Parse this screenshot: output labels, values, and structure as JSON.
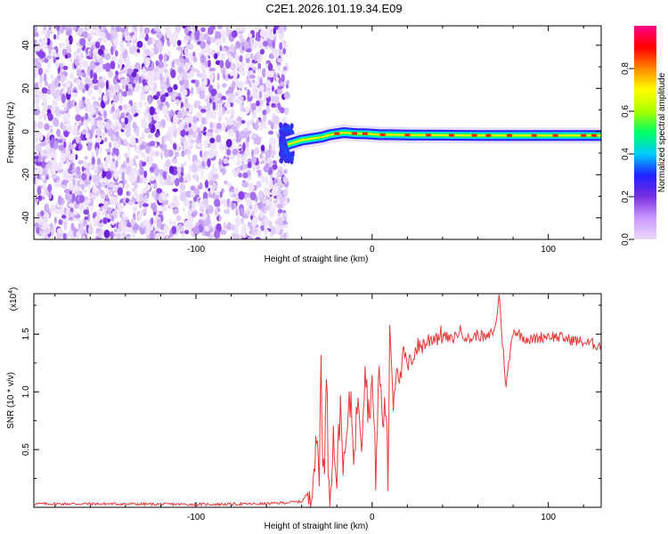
{
  "title": "C2E1.2026.101.19.34.E09",
  "chart_data": [
    {
      "type": "heatmap",
      "xlabel": "Height of straight line (km)",
      "ylabel": "Frequency (Hz)",
      "xlim": [
        -192,
        130
      ],
      "ylim": [
        -50,
        49
      ],
      "xticks": [
        -100,
        0,
        100
      ],
      "yticks": [
        -40,
        -20,
        0,
        20,
        40
      ],
      "colorbar": {
        "label": "Normalized spectral amplitude",
        "range": [
          0,
          1
        ],
        "ticks": [
          0.0,
          0.2,
          0.4,
          0.6,
          0.8
        ],
        "stops": [
          "#e8d8f8",
          "#cc99ff",
          "#7a2fe0",
          "#2020ff",
          "#00ccff",
          "#00ff66",
          "#aaff00",
          "#ffff00",
          "#ff8800",
          "#ff0000",
          "#ff0088"
        ]
      },
      "noise_region_x": [
        -192,
        -48
      ],
      "ridge": {
        "x": [
          -48,
          -44,
          -40,
          -36,
          -32,
          -28,
          -24,
          -20,
          -16,
          -12,
          -8,
          -4,
          0,
          4,
          10,
          20,
          40,
          60,
          80,
          100,
          130
        ],
        "freq": [
          -6,
          -5,
          -4,
          -3.5,
          -3,
          -2.5,
          -1.5,
          -1,
          -0.5,
          -0.8,
          -1,
          -1,
          -1.2,
          -1.5,
          -1.5,
          -1.6,
          -1.7,
          -1.8,
          -1.8,
          -1.8,
          -1.8
        ]
      }
    },
    {
      "type": "line",
      "xlabel": "Height of straight line (km)",
      "ylabel": "SNR (10 * v/v)",
      "scale_label": "(x10",
      "scale_exp": "4",
      "xlim": [
        -192,
        130
      ],
      "ylim": [
        0,
        18500
      ],
      "xticks": [
        -100,
        0,
        100
      ],
      "yticks": [
        5000,
        10000,
        15000
      ],
      "ytick_labels": [
        "0.5",
        "1.0",
        "1.5"
      ],
      "series": [
        {
          "color": "#e83a3a",
          "x": [
            -192,
            -150,
            -100,
            -60,
            -40,
            -35,
            -33,
            -31,
            -30,
            -29,
            -28,
            -27,
            -26,
            -25,
            -24,
            -22,
            -20,
            -18,
            -16,
            -14,
            -12,
            -10,
            -8,
            -6,
            -4,
            -2,
            0,
            2,
            4,
            6,
            8,
            9,
            10,
            12,
            14,
            16,
            18,
            20,
            25,
            30,
            35,
            40,
            45,
            50,
            55,
            60,
            65,
            70,
            72,
            74,
            76,
            80,
            85,
            90,
            100,
            110,
            120,
            130
          ],
          "y": [
            300,
            300,
            250,
            300,
            500,
            1500,
            3500,
            5500,
            3000,
            13000,
            5000,
            2000,
            12800,
            4000,
            1500,
            6000,
            2500,
            9000,
            3000,
            7000,
            9500,
            4000,
            10500,
            6000,
            12500,
            8000,
            11000,
            3000,
            12000,
            7500,
            9000,
            1300,
            16000,
            9000,
            12500,
            11000,
            13500,
            12000,
            13800,
            14200,
            14800,
            14900,
            14500,
            15300,
            14500,
            15000,
            14600,
            15500,
            18500,
            14300,
            10500,
            15400,
            14800,
            14500,
            14900,
            14600,
            14300,
            14000
          ]
        }
      ]
    }
  ]
}
